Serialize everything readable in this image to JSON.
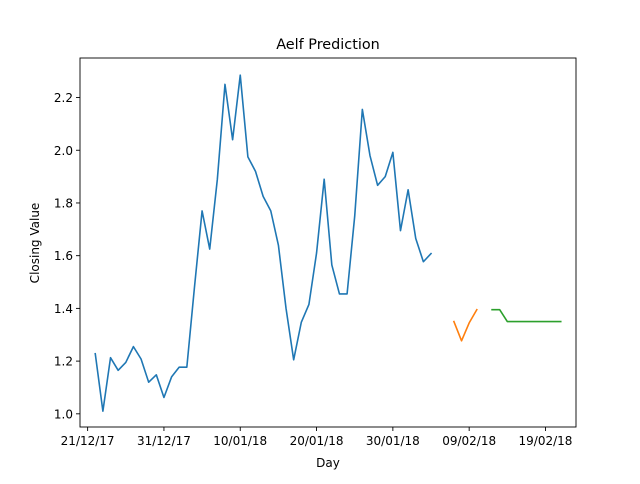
{
  "chart_data": {
    "type": "line",
    "title": "Aelf Prediction",
    "xlabel": "Day",
    "ylabel": "Closing Value",
    "x_ticks": [
      "21/12/17",
      "31/12/17",
      "10/01/18",
      "20/01/18",
      "30/01/18",
      "09/02/18",
      "19/02/18"
    ],
    "y_ticks": [
      "1.0",
      "1.2",
      "1.4",
      "1.6",
      "1.8",
      "2.0",
      "2.2"
    ],
    "xlim": [
      "2017-12-20",
      "2018-02-23"
    ],
    "ylim": [
      0.95,
      2.35
    ],
    "grid": false,
    "series": [
      {
        "color": "#1f77b4",
        "points": [
          [
            "2017-12-22",
            1.228
          ],
          [
            "2017-12-23",
            1.01
          ],
          [
            "2017-12-24",
            1.213
          ],
          [
            "2017-12-25",
            1.165
          ],
          [
            "2017-12-26",
            1.195
          ],
          [
            "2017-12-27",
            1.255
          ],
          [
            "2017-12-28",
            1.208
          ],
          [
            "2017-12-29",
            1.12
          ],
          [
            "2017-12-30",
            1.148
          ],
          [
            "2017-12-31",
            1.062
          ],
          [
            "2018-01-01",
            1.14
          ],
          [
            "2018-01-02",
            1.177
          ],
          [
            "2018-01-03",
            1.177
          ],
          [
            "2018-01-04",
            1.48
          ],
          [
            "2018-01-05",
            1.77
          ],
          [
            "2018-01-06",
            1.625
          ],
          [
            "2018-01-07",
            1.89
          ],
          [
            "2018-01-08",
            2.25
          ],
          [
            "2018-01-09",
            2.04
          ],
          [
            "2018-01-10",
            2.285
          ],
          [
            "2018-01-11",
            1.975
          ],
          [
            "2018-01-12",
            1.92
          ],
          [
            "2018-01-13",
            1.825
          ],
          [
            "2018-01-14",
            1.77
          ],
          [
            "2018-01-15",
            1.64
          ],
          [
            "2018-01-16",
            1.4
          ],
          [
            "2018-01-17",
            1.205
          ],
          [
            "2018-01-18",
            1.347
          ],
          [
            "2018-01-19",
            1.415
          ],
          [
            "2018-01-20",
            1.61
          ],
          [
            "2018-01-21",
            1.89
          ],
          [
            "2018-01-22",
            1.565
          ],
          [
            "2018-01-23",
            1.455
          ],
          [
            "2018-01-24",
            1.455
          ],
          [
            "2018-01-25",
            1.75
          ],
          [
            "2018-01-26",
            2.155
          ],
          [
            "2018-01-27",
            1.98
          ],
          [
            "2018-01-28",
            1.867
          ],
          [
            "2018-01-29",
            1.9
          ],
          [
            "2018-01-30",
            1.992
          ],
          [
            "2018-01-31",
            1.695
          ],
          [
            "2018-02-01",
            1.85
          ],
          [
            "2018-02-02",
            1.665
          ],
          [
            "2018-02-03",
            1.577
          ],
          [
            "2018-02-04",
            1.608
          ]
        ]
      },
      {
        "color": "#ff7f0e",
        "points": [
          [
            "2018-02-07",
            1.35
          ],
          [
            "2018-02-08",
            1.277
          ],
          [
            "2018-02-09",
            1.345
          ],
          [
            "2018-02-10",
            1.395
          ]
        ]
      },
      {
        "color": "#2ca02c",
        "points": [
          [
            "2018-02-12",
            1.395
          ],
          [
            "2018-02-13",
            1.395
          ],
          [
            "2018-02-14",
            1.35
          ],
          [
            "2018-02-15",
            1.35
          ],
          [
            "2018-02-16",
            1.35
          ],
          [
            "2018-02-17",
            1.35
          ],
          [
            "2018-02-18",
            1.35
          ],
          [
            "2018-02-19",
            1.35
          ],
          [
            "2018-02-20",
            1.35
          ],
          [
            "2018-02-21",
            1.35
          ]
        ]
      }
    ]
  }
}
